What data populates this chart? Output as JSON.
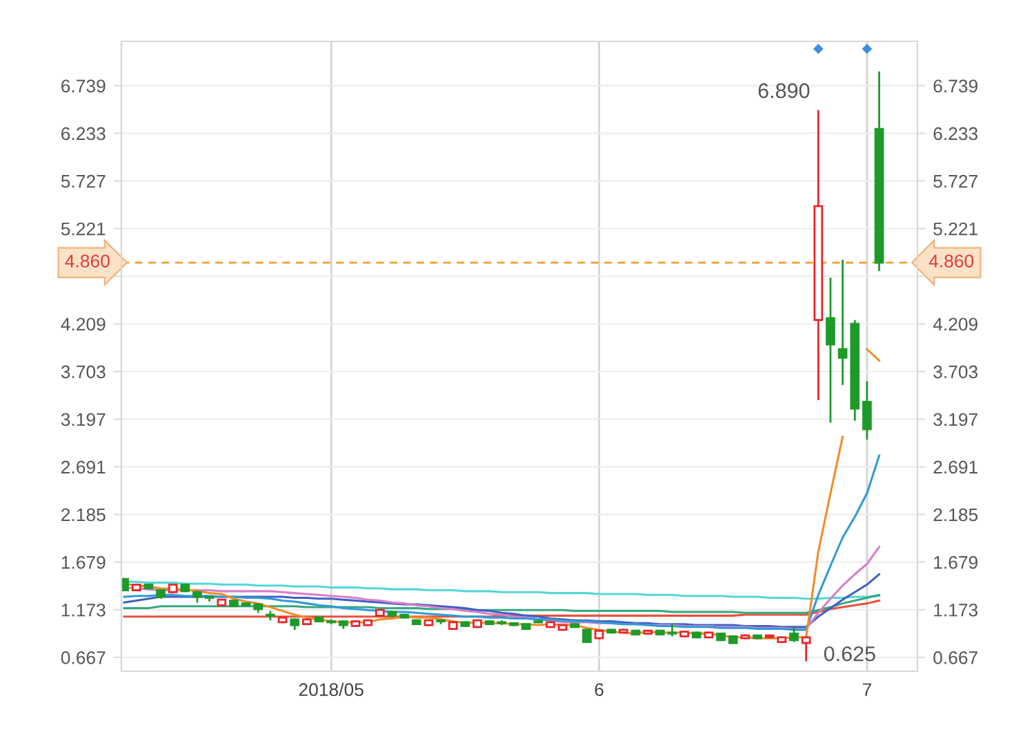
{
  "chart_data": {
    "type": "candlestick",
    "categories": [
      null,
      null,
      null,
      null,
      null,
      null,
      null,
      null,
      null,
      null,
      null,
      null,
      null,
      null,
      null,
      null,
      null,
      "2018/05",
      null,
      null,
      null,
      null,
      null,
      null,
      null,
      null,
      null,
      null,
      null,
      null,
      null,
      null,
      null,
      null,
      null,
      null,
      null,
      null,
      null,
      "6",
      null,
      null,
      null,
      null,
      null,
      null,
      null,
      null,
      null,
      null,
      null,
      null,
      null,
      null,
      null,
      null,
      null,
      null,
      null,
      null,
      null,
      "7",
      null
    ],
    "ohlc": [
      [
        1.5,
        1.51,
        1.37,
        1.38
      ],
      [
        1.38,
        1.45,
        1.37,
        1.44
      ],
      [
        1.44,
        1.45,
        1.39,
        1.4
      ],
      [
        1.38,
        1.39,
        1.29,
        1.31
      ],
      [
        1.36,
        1.45,
        1.35,
        1.44
      ],
      [
        1.44,
        1.45,
        1.36,
        1.37
      ],
      [
        1.36,
        1.37,
        1.25,
        1.31
      ],
      [
        1.31,
        1.31,
        1.26,
        1.3
      ],
      [
        1.22,
        1.29,
        1.21,
        1.28
      ],
      [
        1.27,
        1.28,
        1.2,
        1.21
      ],
      [
        1.24,
        1.25,
        1.21,
        1.22
      ],
      [
        1.23,
        1.24,
        1.14,
        1.18
      ],
      [
        1.12,
        1.16,
        1.06,
        1.11
      ],
      [
        1.04,
        1.1,
        1.03,
        1.09
      ],
      [
        1.07,
        1.08,
        0.96,
        1.01
      ],
      [
        1.02,
        1.08,
        1.01,
        1.07
      ],
      [
        1.09,
        1.1,
        1.04,
        1.05
      ],
      [
        1.05,
        1.07,
        1.02,
        1.04
      ],
      [
        1.05,
        1.06,
        0.97,
        1.01
      ],
      [
        1.0,
        1.06,
        0.99,
        1.05
      ],
      [
        1.01,
        1.07,
        1.0,
        1.06
      ],
      [
        1.11,
        1.18,
        1.1,
        1.17
      ],
      [
        1.15,
        1.16,
        1.1,
        1.11
      ],
      [
        1.12,
        1.13,
        1.08,
        1.09
      ],
      [
        1.06,
        1.07,
        1.01,
        1.02
      ],
      [
        1.01,
        1.07,
        1.0,
        1.06
      ],
      [
        1.06,
        1.06,
        1.02,
        1.05
      ],
      [
        0.97,
        1.05,
        0.96,
        1.04
      ],
      [
        1.04,
        1.05,
        0.99,
        1.0
      ],
      [
        0.99,
        1.07,
        0.98,
        1.06
      ],
      [
        1.05,
        1.06,
        1.01,
        1.02
      ],
      [
        1.04,
        1.06,
        1.01,
        1.03
      ],
      [
        1.03,
        1.04,
        1.0,
        1.01
      ],
      [
        1.02,
        1.03,
        0.96,
        0.97
      ],
      [
        1.05,
        1.07,
        1.03,
        1.04
      ],
      [
        0.99,
        1.05,
        0.98,
        1.04
      ],
      [
        0.96,
        1.02,
        0.95,
        1.01
      ],
      [
        1.02,
        1.03,
        0.98,
        0.99
      ],
      [
        0.96,
        0.97,
        0.82,
        0.83
      ],
      [
        0.87,
        0.96,
        0.86,
        0.95
      ],
      [
        0.96,
        0.97,
        0.92,
        0.93
      ],
      [
        0.93,
        0.97,
        0.92,
        0.96
      ],
      [
        0.95,
        0.96,
        0.9,
        0.91
      ],
      [
        0.92,
        0.96,
        0.91,
        0.95
      ],
      [
        0.95,
        0.96,
        0.9,
        0.91
      ],
      [
        0.93,
        1.03,
        0.89,
        0.92
      ],
      [
        0.89,
        0.95,
        0.88,
        0.94
      ],
      [
        0.93,
        0.94,
        0.87,
        0.88
      ],
      [
        0.88,
        0.94,
        0.87,
        0.93
      ],
      [
        0.92,
        0.93,
        0.84,
        0.85
      ],
      [
        0.89,
        0.9,
        0.81,
        0.82
      ],
      [
        0.87,
        0.91,
        0.86,
        0.9
      ],
      [
        0.9,
        0.91,
        0.86,
        0.87
      ],
      [
        0.88,
        0.91,
        0.87,
        0.9
      ],
      [
        0.83,
        0.89,
        0.82,
        0.88
      ],
      [
        0.92,
        0.99,
        0.83,
        0.85
      ],
      [
        0.82,
        0.89,
        0.625,
        0.88
      ],
      [
        4.25,
        6.48,
        3.4,
        5.46
      ],
      [
        4.27,
        4.7,
        3.16,
        3.99
      ],
      [
        3.94,
        4.89,
        3.56,
        3.85
      ],
      [
        4.21,
        4.25,
        3.18,
        3.31
      ],
      [
        3.38,
        3.6,
        2.98,
        3.09
      ],
      [
        6.28,
        6.89,
        4.77,
        4.86
      ]
    ],
    "colors": [
      "#1e9a2a",
      "#e8262a",
      "#1e9a2a",
      "#1e9a2a",
      "#e8262a",
      "#1e9a2a",
      "#1e9a2a",
      "#1e9a2a",
      "#e8262a",
      "#1e9a2a",
      "#1e9a2a",
      "#1e9a2a",
      "#1e9a2a",
      "#e8262a",
      "#1e9a2a",
      "#e8262a",
      "#1e9a2a",
      "#1e9a2a",
      "#1e9a2a",
      "#e8262a",
      "#e8262a",
      "#e8262a",
      "#1e9a2a",
      "#1e9a2a",
      "#1e9a2a",
      "#e8262a",
      "#1e9a2a",
      "#e8262a",
      "#1e9a2a",
      "#e8262a",
      "#1e9a2a",
      "#1e9a2a",
      "#1e9a2a",
      "#1e9a2a",
      "#1e9a2a",
      "#e8262a",
      "#e8262a",
      "#1e9a2a",
      "#1e9a2a",
      "#e8262a",
      "#1e9a2a",
      "#e8262a",
      "#1e9a2a",
      "#e8262a",
      "#1e9a2a",
      "#1e9a2a",
      "#e8262a",
      "#1e9a2a",
      "#e8262a",
      "#1e9a2a",
      "#1e9a2a",
      "#e8262a",
      "#1e9a2a",
      "#e8262a",
      "#e8262a",
      "#1e9a2a",
      "#e8262a",
      "#e8262a",
      "#1e9a2a",
      "#1e9a2a",
      "#1e9a2a",
      "#1e9a2a",
      "#1e9a2a"
    ],
    "series": [
      {
        "type": "line",
        "color": "#55d6d6",
        "values": [
          1.47,
          1.47,
          1.46,
          1.46,
          1.46,
          1.45,
          1.45,
          1.45,
          1.44,
          1.44,
          1.44,
          1.43,
          1.43,
          1.43,
          1.42,
          1.42,
          1.42,
          1.41,
          1.41,
          1.41,
          1.4,
          1.4,
          1.39,
          1.39,
          1.39,
          1.38,
          1.38,
          1.38,
          1.37,
          1.37,
          1.37,
          1.36,
          1.36,
          1.36,
          1.36,
          1.35,
          1.35,
          1.35,
          1.35,
          1.34,
          1.34,
          1.34,
          1.34,
          1.33,
          1.33,
          1.33,
          1.32,
          1.32,
          1.32,
          1.32,
          1.31,
          1.31,
          1.31,
          1.3,
          1.3,
          1.3,
          1.29,
          1.29,
          1.3,
          1.3,
          1.31,
          1.31,
          1.32
        ]
      },
      {
        "type": "line",
        "color": "#e5533d",
        "values": [
          1.1,
          1.1,
          1.1,
          1.1,
          1.1,
          1.1,
          1.1,
          1.1,
          1.1,
          1.1,
          1.1,
          1.1,
          1.1,
          1.1,
          1.1,
          1.1,
          1.1,
          1.1,
          1.1,
          1.1,
          1.1,
          1.1,
          1.1,
          1.1,
          1.1,
          1.1,
          1.1,
          1.1,
          1.1,
          1.1,
          1.1,
          1.11,
          1.11,
          1.11,
          1.11,
          1.11,
          1.11,
          1.11,
          1.11,
          1.11,
          1.11,
          1.11,
          1.11,
          1.11,
          1.11,
          1.11,
          1.11,
          1.11,
          1.11,
          1.11,
          1.11,
          1.12,
          1.12,
          1.12,
          1.12,
          1.12,
          1.12,
          1.15,
          1.18,
          1.2,
          1.22,
          1.24,
          1.27
        ]
      },
      {
        "type": "line",
        "color": "#35a882",
        "values": [
          1.19,
          1.19,
          1.19,
          1.21,
          1.21,
          1.21,
          1.21,
          1.21,
          1.21,
          1.21,
          1.21,
          1.21,
          1.21,
          1.21,
          1.21,
          1.2,
          1.2,
          1.2,
          1.2,
          1.2,
          1.2,
          1.19,
          1.19,
          1.19,
          1.19,
          1.18,
          1.18,
          1.18,
          1.18,
          1.17,
          1.17,
          1.17,
          1.17,
          1.17,
          1.17,
          1.17,
          1.17,
          1.16,
          1.16,
          1.16,
          1.16,
          1.16,
          1.16,
          1.16,
          1.16,
          1.15,
          1.15,
          1.15,
          1.15,
          1.15,
          1.15,
          1.14,
          1.14,
          1.14,
          1.14,
          1.14,
          1.14,
          1.17,
          1.2,
          1.24,
          1.27,
          1.3,
          1.33
        ]
      },
      {
        "type": "line",
        "color": "#3f5fc4",
        "values": [
          1.25,
          1.27,
          1.29,
          1.31,
          1.31,
          1.31,
          1.31,
          1.31,
          1.31,
          1.31,
          1.31,
          1.31,
          1.31,
          1.31,
          1.3,
          1.3,
          1.29,
          1.29,
          1.28,
          1.27,
          1.26,
          1.25,
          1.24,
          1.23,
          1.23,
          1.22,
          1.21,
          1.2,
          1.19,
          1.17,
          1.16,
          1.14,
          1.13,
          1.11,
          1.1,
          1.08,
          1.07,
          1.06,
          1.06,
          1.05,
          1.05,
          1.04,
          1.03,
          1.03,
          1.02,
          1.02,
          1.02,
          1.01,
          1.01,
          1.01,
          1.01,
          1.0,
          1.0,
          1.0,
          0.99,
          0.99,
          0.99,
          1.1,
          1.19,
          1.28,
          1.36,
          1.44,
          1.55
        ]
      },
      {
        "type": "line",
        "color": "#d67fc8",
        "values": [
          1.41,
          1.4,
          1.39,
          1.38,
          1.38,
          1.38,
          1.38,
          1.38,
          1.37,
          1.37,
          1.37,
          1.37,
          1.37,
          1.36,
          1.35,
          1.34,
          1.33,
          1.32,
          1.31,
          1.3,
          1.28,
          1.27,
          1.25,
          1.24,
          1.22,
          1.21,
          1.19,
          1.18,
          1.16,
          1.15,
          1.13,
          1.12,
          1.1,
          1.09,
          1.07,
          1.06,
          1.04,
          1.04,
          1.04,
          1.03,
          1.03,
          1.02,
          1.02,
          1.01,
          1.01,
          1.01,
          1.0,
          1.0,
          1.0,
          0.99,
          0.99,
          0.99,
          0.98,
          0.98,
          0.98,
          0.97,
          0.97,
          1.14,
          1.29,
          1.43,
          1.55,
          1.66,
          1.84
        ]
      },
      {
        "type": "line",
        "color": "#2f9bd6",
        "values": [
          1.31,
          1.32,
          1.32,
          1.33,
          1.33,
          1.32,
          1.32,
          1.32,
          1.31,
          1.31,
          1.3,
          1.3,
          1.29,
          1.27,
          1.26,
          1.24,
          1.22,
          1.21,
          1.19,
          1.18,
          1.17,
          1.16,
          1.15,
          1.15,
          1.14,
          1.13,
          1.12,
          1.11,
          1.1,
          1.1,
          1.09,
          1.09,
          1.08,
          1.08,
          1.07,
          1.07,
          1.06,
          1.05,
          1.05,
          1.04,
          1.03,
          1.02,
          1.02,
          1.01,
          1.0,
          1.0,
          0.99,
          0.99,
          0.99,
          0.98,
          0.98,
          0.98,
          0.97,
          0.97,
          0.97,
          0.96,
          0.96,
          1.33,
          1.64,
          1.94,
          2.16,
          2.41,
          2.81
        ]
      },
      {
        "type": "line",
        "color": "#f28c28",
        "values": [
          1.45,
          1.43,
          1.42,
          1.4,
          1.39,
          1.39,
          1.37,
          1.35,
          1.34,
          1.29,
          1.26,
          1.24,
          1.2,
          1.16,
          1.12,
          1.09,
          1.07,
          1.05,
          1.04,
          1.04,
          1.04,
          1.07,
          1.08,
          1.1,
          1.09,
          1.09,
          1.07,
          1.05,
          1.03,
          1.04,
          1.03,
          1.03,
          1.02,
          1.02,
          1.01,
          1.02,
          1.01,
          1.01,
          0.98,
          0.96,
          0.94,
          0.93,
          0.92,
          0.94,
          0.93,
          0.93,
          0.93,
          0.92,
          0.92,
          0.9,
          0.88,
          0.88,
          0.87,
          0.87,
          0.87,
          0.88,
          0.88,
          1.79,
          2.41,
          3.01,
          null,
          3.94,
          3.82
        ]
      },
      {
        "type": "scatter",
        "marker": "diamond",
        "color": "#3d8fe0",
        "values": [
          null,
          null,
          null,
          null,
          null,
          null,
          null,
          null,
          null,
          null,
          null,
          null,
          null,
          null,
          null,
          null,
          null,
          null,
          null,
          null,
          null,
          null,
          null,
          null,
          null,
          null,
          null,
          null,
          null,
          null,
          null,
          null,
          null,
          null,
          null,
          null,
          null,
          null,
          null,
          null,
          null,
          null,
          null,
          null,
          null,
          null,
          null,
          null,
          null,
          null,
          null,
          null,
          null,
          null,
          null,
          null,
          null,
          7.13,
          null,
          null,
          null,
          7.13,
          null
        ]
      }
    ],
    "ylim": [
      0.52,
      7.21
    ],
    "yticks": [
      0.667,
      1.173,
      1.679,
      2.185,
      2.691,
      3.197,
      3.703,
      4.209,
      {
        "value": 4.715,
        "label": null
      },
      5.221,
      5.727,
      6.233,
      6.739
    ],
    "y2lim": [
      0.52,
      7.21
    ],
    "y2ticks": [
      0.667,
      1.173,
      1.679,
      2.185,
      2.691,
      3.197,
      3.703,
      4.209,
      {
        "value": 4.715,
        "label": null
      },
      5.221,
      5.727,
      6.233,
      6.739
    ],
    "grid": true,
    "ref_lines": [
      {
        "axis": "y",
        "value": 4.86,
        "label": "4.860",
        "color": "#f0a030",
        "line_style": "dashed"
      }
    ],
    "annotations": [
      "6.890",
      "0.625"
    ]
  }
}
